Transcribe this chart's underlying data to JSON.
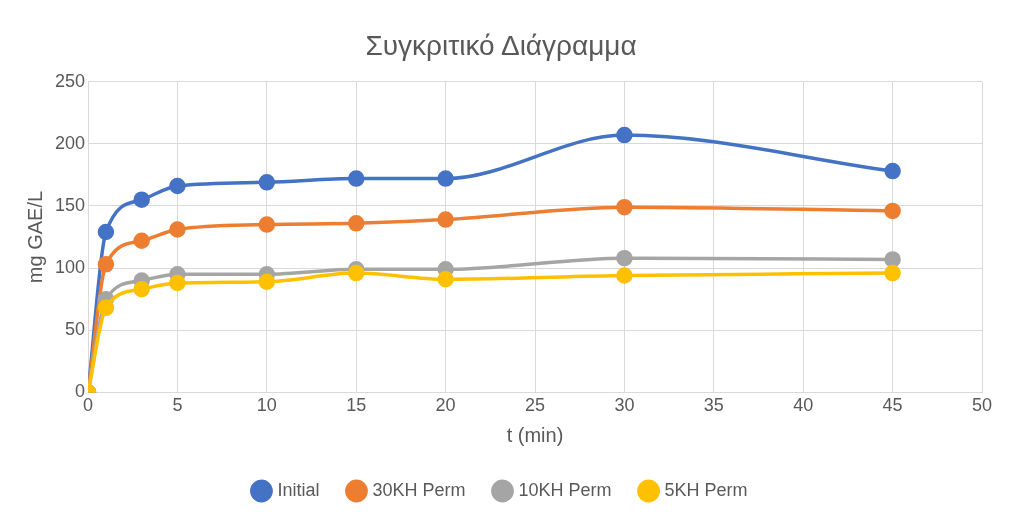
{
  "chart_data": {
    "type": "line",
    "title": "Συγκριτικό Διάγραμμα",
    "xlabel": "t (min)",
    "ylabel": "mg GAE/L",
    "x": [
      0,
      1,
      3,
      5,
      10,
      15,
      20,
      30,
      45
    ],
    "series": [
      {
        "name": "Initial",
        "color": "#4472c4",
        "values": [
          0,
          129,
          155,
          166,
          169,
          172,
          172,
          207,
          178
        ]
      },
      {
        "name": "30KH Perm",
        "color": "#ed7d31",
        "values": [
          0,
          103,
          122,
          131,
          135,
          136,
          139,
          149,
          146
        ]
      },
      {
        "name": "10KH Perm",
        "color": "#a5a5a5",
        "values": [
          0,
          75,
          90,
          95,
          95,
          99,
          99,
          108,
          107
        ]
      },
      {
        "name": "5KH Perm",
        "color": "#ffc000",
        "values": [
          0,
          68,
          83,
          88,
          89,
          96,
          91,
          94,
          96
        ]
      }
    ],
    "xlim": [
      0,
      50
    ],
    "xticks": [
      0,
      5,
      10,
      15,
      20,
      25,
      30,
      35,
      40,
      45,
      50
    ],
    "ylim": [
      0,
      250
    ],
    "yticks": [
      0,
      50,
      100,
      150,
      200,
      250
    ],
    "grid": true,
    "legend": "bottom",
    "marker": "circle",
    "line_style": "solid"
  }
}
